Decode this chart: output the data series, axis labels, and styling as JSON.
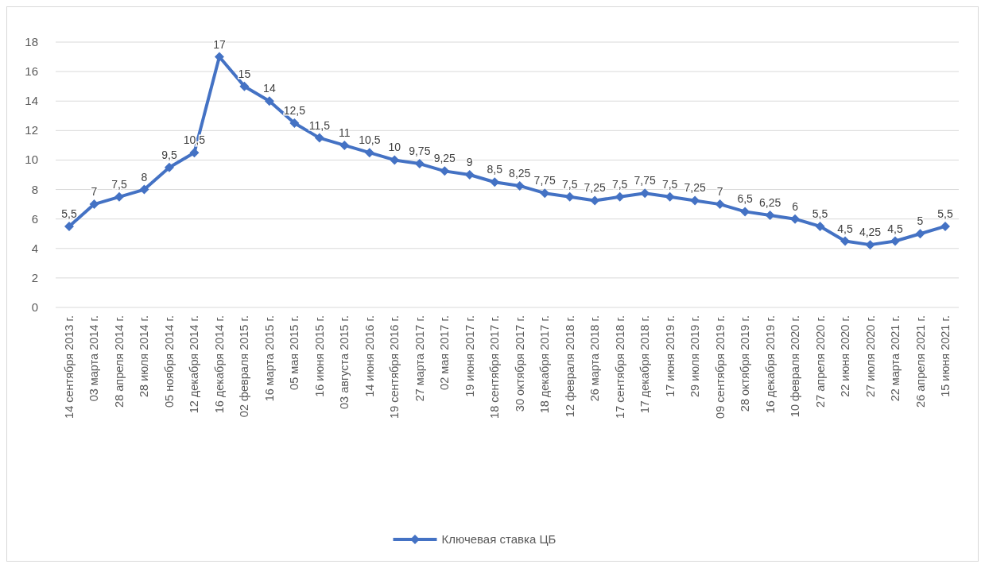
{
  "chart_data": {
    "type": "line",
    "categories": [
      "14 сентября 2013 г.",
      "03 марта 2014 г.",
      "28 апреля 2014 г.",
      "28 июля 2014 г.",
      "05 ноября 2014 г.",
      "12 декабря 2014 г.",
      "16 декабря 2014 г.",
      "02 февраля 2015 г.",
      "16 марта 2015 г.",
      "05 мая 2015 г.",
      "16 июня 2015 г.",
      "03 августа 2015 г.",
      "14 июня 2016 г.",
      "19 сентября 2016 г.",
      "27 марта 2017 г.",
      "02 мая 2017 г.",
      "19 июня 2017 г.",
      "18 сентября 2017 г.",
      "30 октября 2017 г.",
      "18 декабря 2017 г.",
      "12 февраля 2018 г.",
      "26 марта 2018 г.",
      "17 сентября 2018 г.",
      "17 декабря 2018 г.",
      "17 июня 2019 г.",
      "29 июля 2019 г.",
      "09 сентября 2019 г.",
      "28 октября 2019 г.",
      "16 декабря 2019 г.",
      "10 февраля 2020 г.",
      "27 апреля 2020 г.",
      "22 июня 2020 г.",
      "27 июля 2020 г.",
      "22 марта 2021 г.",
      "26 апреля 2021 г.",
      "15 июня 2021 г."
    ],
    "series": [
      {
        "name": "Ключевая ставка ЦБ",
        "color": "#4472c4",
        "values": [
          5.5,
          7,
          7.5,
          8,
          9.5,
          10.5,
          17,
          15,
          14,
          12.5,
          11.5,
          11,
          10.5,
          10,
          9.75,
          9.25,
          9,
          8.5,
          8.25,
          7.75,
          7.5,
          7.25,
          7.5,
          7.75,
          7.5,
          7.25,
          7,
          6.5,
          6.25,
          6,
          5.5,
          4.5,
          4.25,
          4.5,
          5,
          5.5
        ],
        "value_labels": [
          "5,5",
          "7",
          "7,5",
          "8",
          "9,5",
          "10,5",
          "17",
          "15",
          "14",
          "12,5",
          "11,5",
          "11",
          "10,5",
          "10",
          "9,75",
          "9,25",
          "9",
          "8,5",
          "8,25",
          "7,75",
          "7,5",
          "7,25",
          "7,5",
          "7,75",
          "7,5",
          "7,25",
          "7",
          "6,5",
          "6,25",
          "6",
          "5,5",
          "4,5",
          "4,25",
          "4,5",
          "5",
          "5,5"
        ]
      }
    ],
    "ylim": [
      0,
      18
    ],
    "yticks": [
      0,
      2,
      4,
      6,
      8,
      10,
      12,
      14,
      16,
      18
    ],
    "grid": "y",
    "legend": "bottom",
    "marker": "diamond",
    "line_style": "solid"
  }
}
